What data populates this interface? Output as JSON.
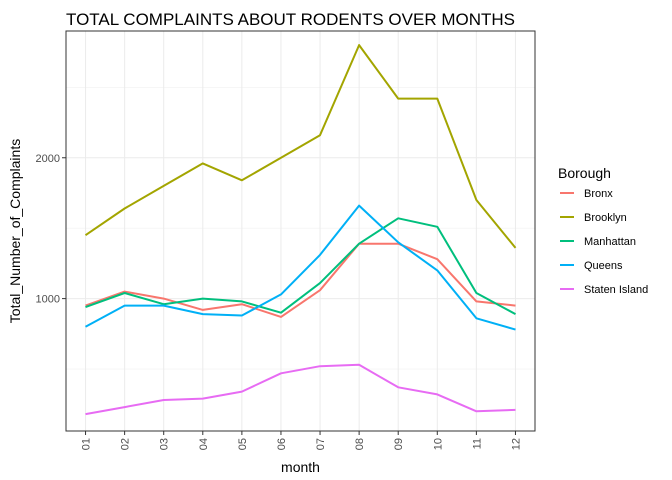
{
  "chart_data": {
    "type": "line",
    "title": "TOTAL COMPLAINTS ABOUT RODENTS OVER MONTHS",
    "xlabel": "month",
    "ylabel": "Total_Number_of_Complaints",
    "categories": [
      "01",
      "02",
      "03",
      "04",
      "05",
      "06",
      "07",
      "08",
      "09",
      "10",
      "11",
      "12"
    ],
    "ylim": [
      60,
      2900
    ],
    "y_ticks": [
      1000,
      2000
    ],
    "y_minor_ticks": [
      500,
      1500,
      2500
    ],
    "grid": true,
    "legend": {
      "title": "Borough",
      "placement": "right"
    },
    "series": [
      {
        "name": "Bronx",
        "color": "#F8766D",
        "values": [
          950,
          1050,
          1000,
          920,
          960,
          870,
          1060,
          1390,
          1390,
          1280,
          980,
          950
        ]
      },
      {
        "name": "Brooklyn",
        "color": "#A3A500",
        "values": [
          1450,
          1640,
          1800,
          1960,
          1840,
          2000,
          2160,
          2800,
          2420,
          2420,
          1700,
          1360
        ]
      },
      {
        "name": "Manhattan",
        "color": "#00BF7D",
        "values": [
          940,
          1040,
          960,
          1000,
          980,
          900,
          1110,
          1390,
          1570,
          1510,
          1040,
          890
        ]
      },
      {
        "name": "Queens",
        "color": "#00B0F6",
        "values": [
          800,
          950,
          950,
          890,
          880,
          1030,
          1310,
          1660,
          1400,
          1200,
          860,
          780
        ]
      },
      {
        "name": "Staten Island",
        "color": "#E76BF3",
        "values": [
          180,
          230,
          280,
          290,
          340,
          470,
          520,
          530,
          370,
          320,
          200,
          210
        ]
      }
    ]
  }
}
